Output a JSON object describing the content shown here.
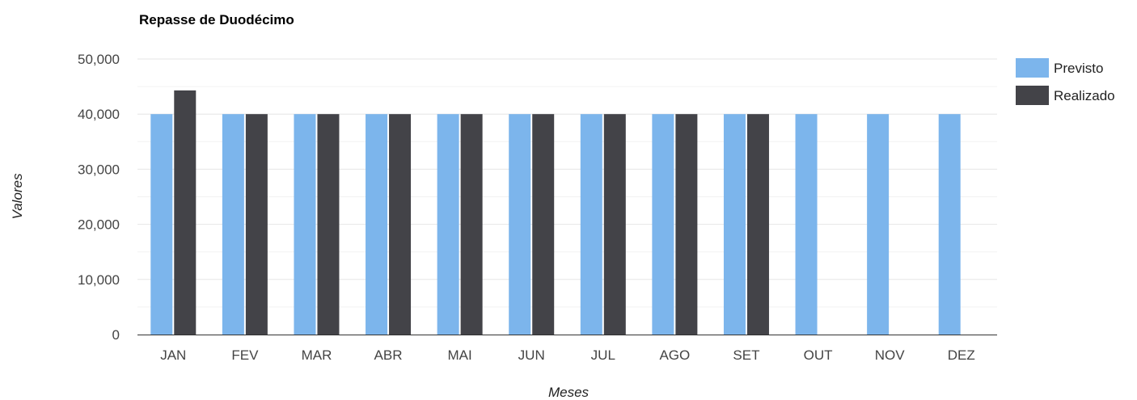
{
  "colors": {
    "previsto": "#7cb5ec",
    "realizado": "#434348",
    "grid": "#e6e6e6",
    "baseline": "#333333"
  },
  "chart_data": {
    "type": "bar",
    "title": "Repasse de Duodécimo",
    "xlabel": "Meses",
    "ylabel": "Valores",
    "categories": [
      "JAN",
      "FEV",
      "MAR",
      "ABR",
      "MAI",
      "JUN",
      "JUL",
      "AGO",
      "SET",
      "OUT",
      "NOV",
      "DEZ"
    ],
    "series": [
      {
        "name": "Previsto",
        "color": "#7cb5ec",
        "values": [
          40000,
          40000,
          40000,
          40000,
          40000,
          40000,
          40000,
          40000,
          40000,
          40000,
          40000,
          40000
        ]
      },
      {
        "name": "Realizado",
        "color": "#434348",
        "values": [
          44300,
          40000,
          40000,
          40000,
          40000,
          40000,
          40000,
          40000,
          40000,
          null,
          null,
          null
        ]
      }
    ],
    "ylim": [
      0,
      50000
    ],
    "yticks": [
      "0",
      "10,000",
      "20,000",
      "30,000",
      "40,000",
      "50,000"
    ],
    "ytick_values": [
      0,
      10000,
      20000,
      30000,
      40000,
      50000
    ],
    "grid": true,
    "legend_position": "right"
  }
}
